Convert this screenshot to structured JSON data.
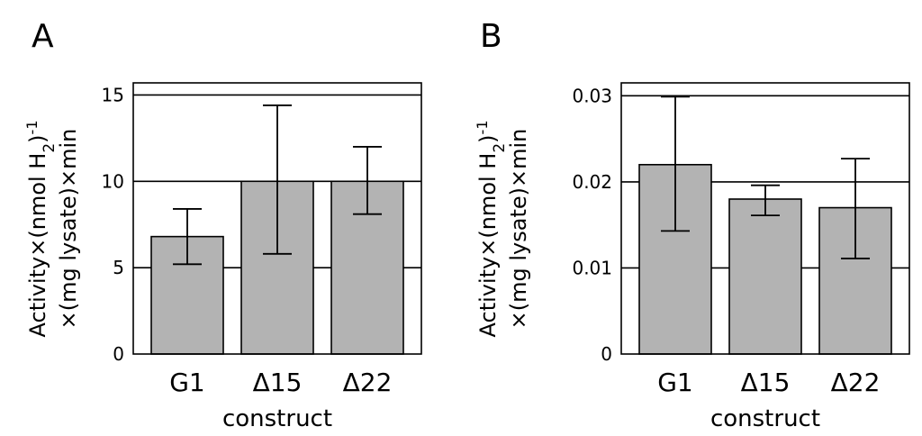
{
  "chart_data": [
    {
      "panel": "A",
      "type": "bar",
      "categories": [
        "G1",
        "Δ15",
        "Δ22"
      ],
      "values": [
        6.8,
        10.0,
        10.0
      ],
      "errors": [
        [
          5.2,
          8.4
        ],
        [
          5.8,
          14.4
        ],
        [
          8.1,
          12.0
        ]
      ],
      "ylim": [
        0,
        15.7
      ],
      "yticks": [
        0,
        5,
        10,
        15
      ],
      "ytick_labels": [
        "0",
        "5",
        "10",
        "15"
      ],
      "grid": "horizontal",
      "xlabel": "construct",
      "ylabel_line1": "Activity×(nmol H",
      "ylabel_sub": "2",
      "ylabel_mid": ")",
      "ylabel_sup": "-1",
      "ylabel_line2": "×(mg lysate)×min",
      "bar_color": "#b3b3b3"
    },
    {
      "panel": "B",
      "type": "bar",
      "categories": [
        "G1",
        "Δ15",
        "Δ22"
      ],
      "values": [
        0.022,
        0.018,
        0.017
      ],
      "errors": [
        [
          0.0143,
          0.0299
        ],
        [
          0.0161,
          0.0196
        ],
        [
          0.0111,
          0.0227
        ]
      ],
      "ylim": [
        0,
        0.0315
      ],
      "yticks": [
        0,
        0.01,
        0.02,
        0.03
      ],
      "ytick_labels": [
        "0",
        "0.01",
        "0.02",
        "0.03"
      ],
      "grid": "horizontal",
      "xlabel": "construct",
      "ylabel_line1": "Activity×(nmol H",
      "ylabel_sub": "2",
      "ylabel_mid": ")",
      "ylabel_sup": "-1",
      "ylabel_line2": "×(mg lysate)×min",
      "bar_color": "#b3b3b3"
    }
  ]
}
